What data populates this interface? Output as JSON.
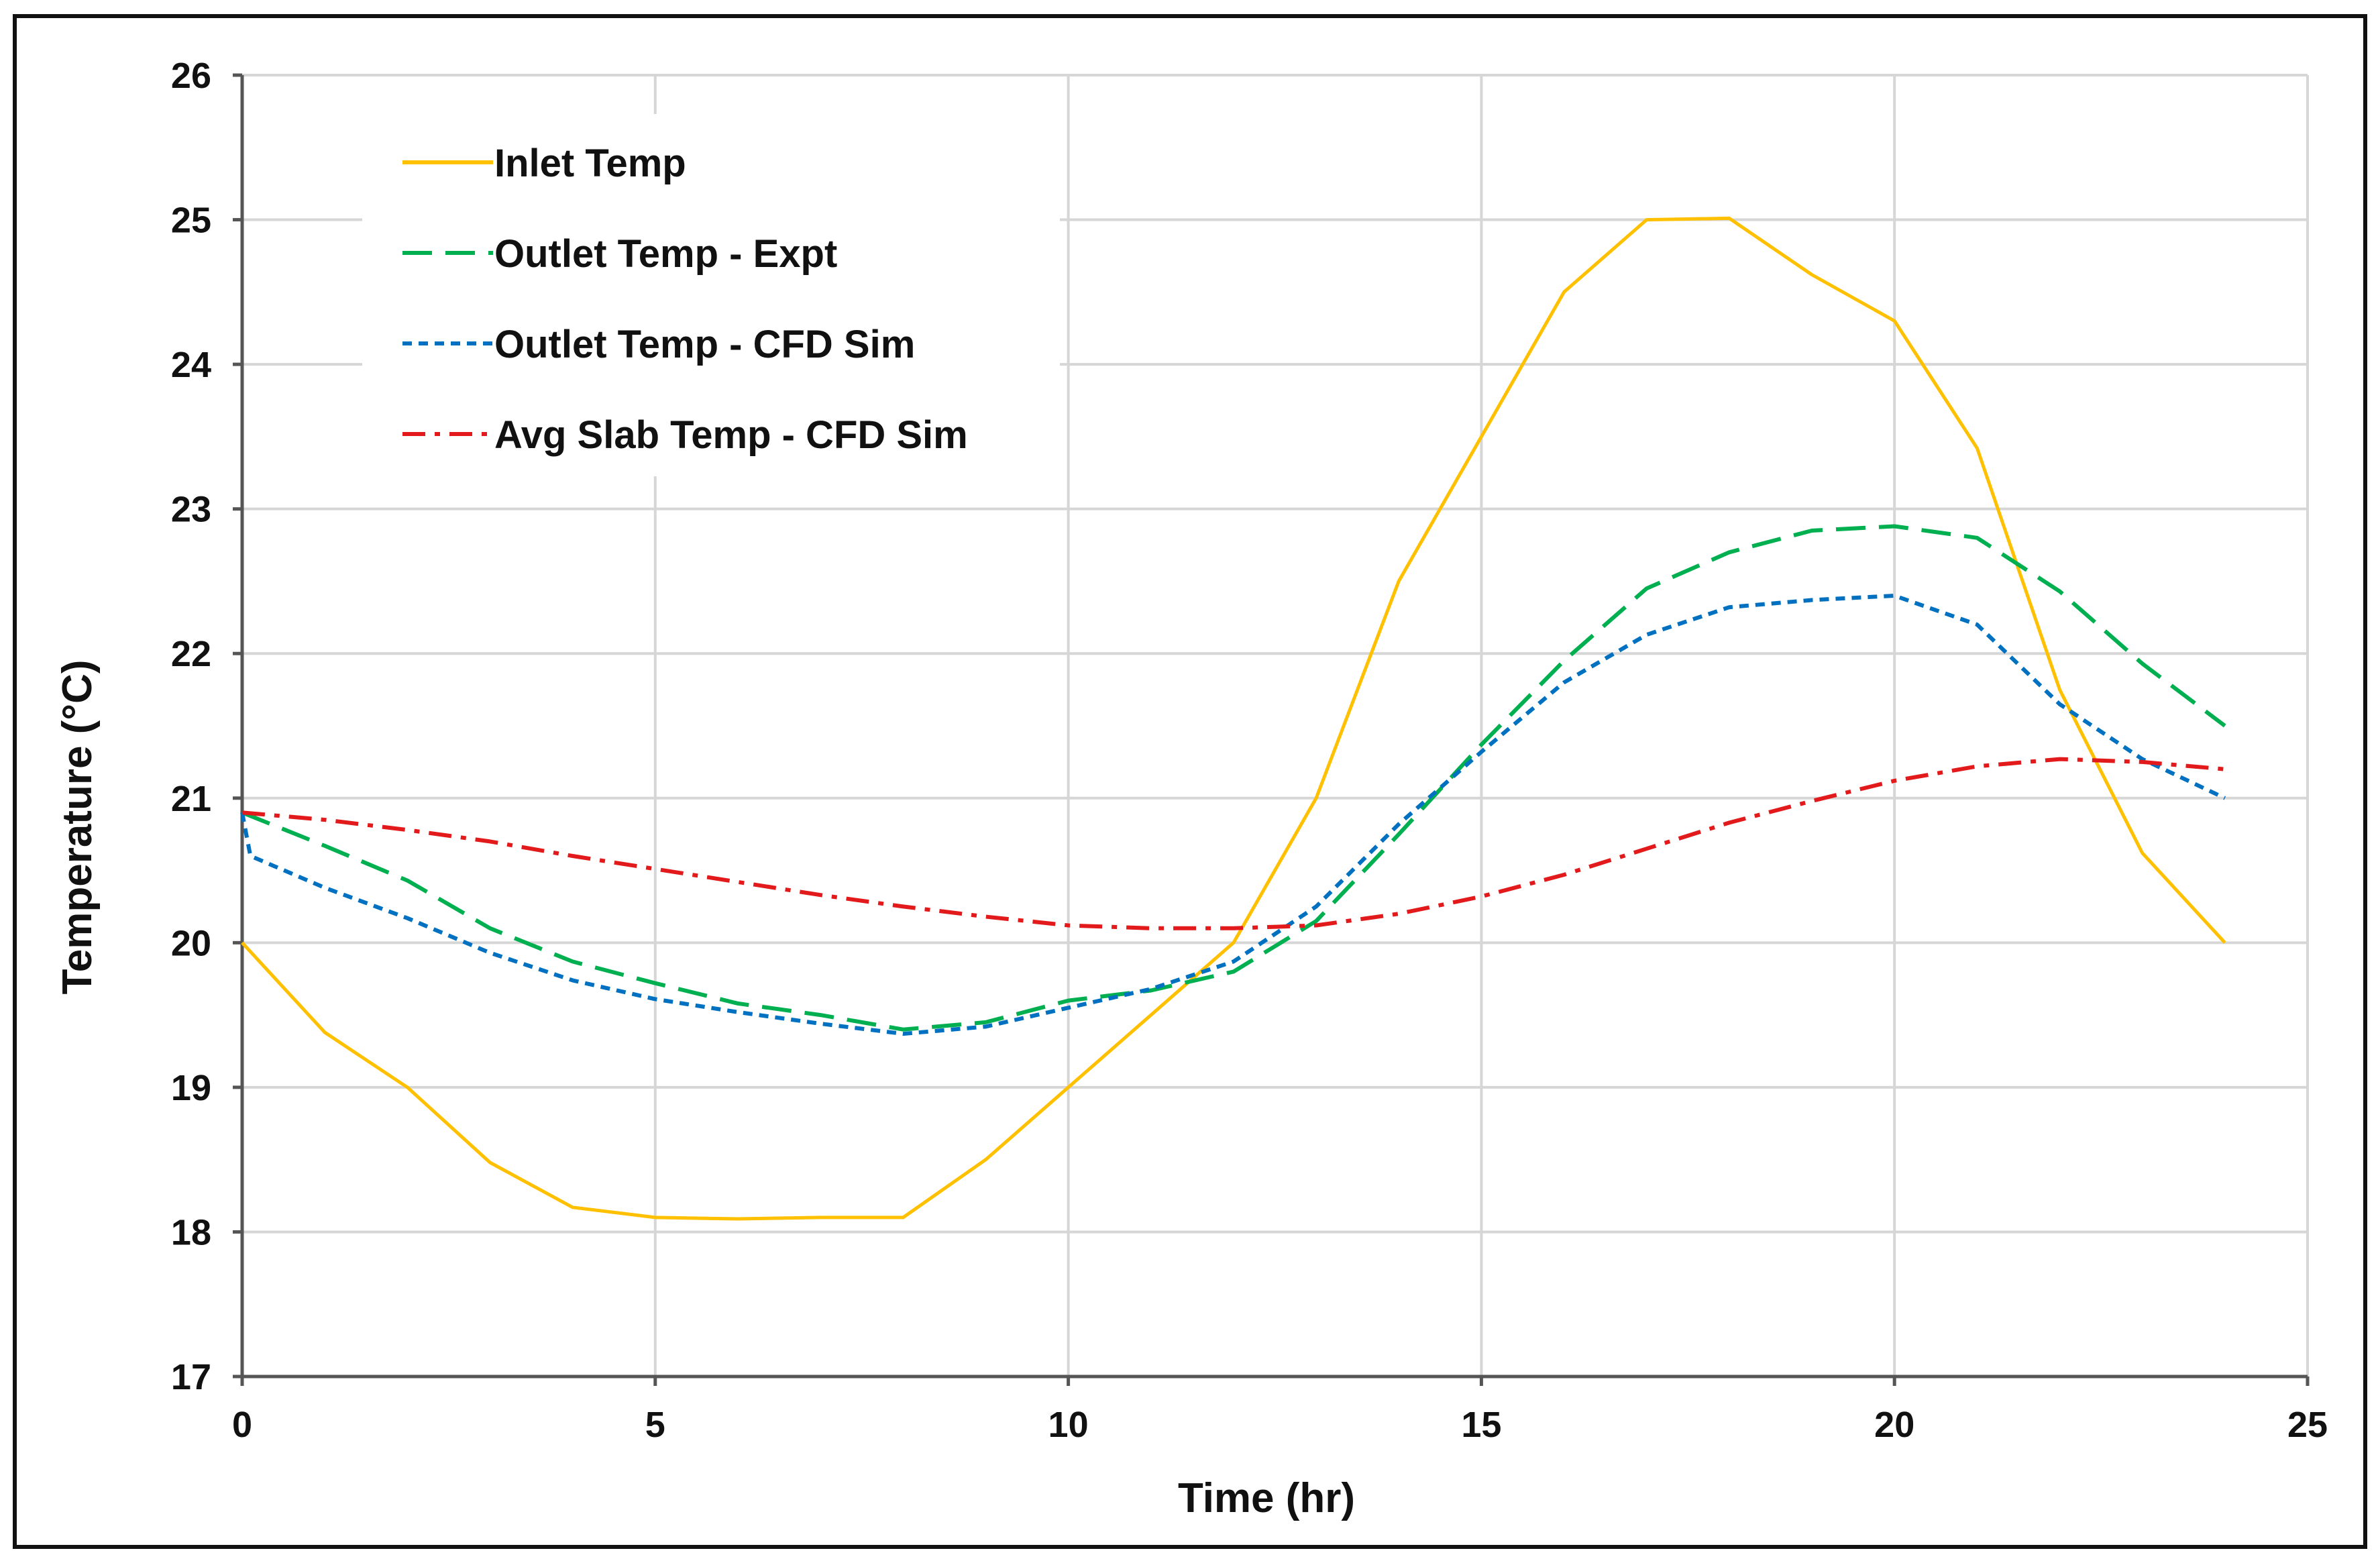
{
  "chart_data": {
    "type": "line",
    "title": "",
    "xlabel": "Time (hr)",
    "ylabel": "Temperature (°C)",
    "xlim": [
      0,
      25
    ],
    "ylim": [
      17,
      26
    ],
    "xticks": [
      0,
      5,
      10,
      15,
      20,
      25
    ],
    "yticks": [
      17,
      18,
      19,
      20,
      21,
      22,
      23,
      24,
      25,
      26
    ],
    "grid": true,
    "legend_position": "top-left",
    "series": [
      {
        "name": "Inlet Temp",
        "color": "#FFC000",
        "dash": "solid",
        "x": [
          0,
          1,
          2,
          3,
          4,
          5,
          6,
          7,
          8,
          9,
          10,
          11,
          12,
          13,
          14,
          15,
          16,
          17,
          18,
          19,
          20,
          21,
          22,
          23,
          24
        ],
        "y": [
          20.0,
          19.38,
          19.0,
          18.48,
          18.17,
          18.1,
          18.09,
          18.1,
          18.1,
          18.5,
          19.0,
          19.5,
          20.0,
          21.0,
          22.5,
          23.5,
          24.5,
          25.0,
          25.01,
          24.62,
          24.3,
          23.42,
          21.75,
          20.62,
          20.0
        ]
      },
      {
        "name": "Outlet Temp - Expt",
        "color": "#00B050",
        "dash": "long-dash",
        "x": [
          0,
          1,
          2,
          3,
          4,
          5,
          6,
          7,
          8,
          9,
          10,
          11,
          12,
          13,
          14,
          15,
          16,
          17,
          18,
          19,
          20,
          21,
          22,
          23,
          24
        ],
        "y": [
          20.9,
          20.67,
          20.43,
          20.1,
          19.87,
          19.72,
          19.58,
          19.5,
          19.4,
          19.45,
          19.6,
          19.67,
          19.8,
          20.15,
          20.75,
          21.37,
          21.95,
          22.45,
          22.7,
          22.85,
          22.88,
          22.8,
          22.43,
          21.93,
          21.5
        ]
      },
      {
        "name": "Outlet Temp - CFD Sim",
        "color": "#0070C0",
        "dash": "short-dash",
        "x": [
          0,
          0.1,
          1,
          2,
          3,
          4,
          5,
          6,
          7,
          8,
          9,
          10,
          11,
          12,
          13,
          14,
          15,
          16,
          17,
          18,
          19,
          20,
          21,
          22,
          23,
          24
        ],
        "y": [
          20.9,
          20.6,
          20.38,
          20.17,
          19.93,
          19.74,
          19.61,
          19.52,
          19.44,
          19.37,
          19.42,
          19.55,
          19.68,
          19.87,
          20.25,
          20.82,
          21.32,
          21.8,
          22.13,
          22.32,
          22.37,
          22.4,
          22.2,
          21.65,
          21.27,
          21.0
        ]
      },
      {
        "name": "Avg Slab Temp - CFD Sim",
        "color": "#E31A1C",
        "dash": "dash-dot",
        "x": [
          0,
          1,
          2,
          3,
          4,
          5,
          6,
          7,
          8,
          9,
          10,
          11,
          12,
          13,
          14,
          15,
          16,
          17,
          18,
          19,
          20,
          21,
          22,
          23,
          24
        ],
        "y": [
          20.9,
          20.85,
          20.78,
          20.7,
          20.6,
          20.51,
          20.42,
          20.33,
          20.25,
          20.18,
          20.12,
          20.1,
          20.1,
          20.12,
          20.2,
          20.32,
          20.47,
          20.65,
          20.83,
          20.98,
          21.12,
          21.22,
          21.27,
          21.25,
          21.2
        ]
      }
    ]
  }
}
